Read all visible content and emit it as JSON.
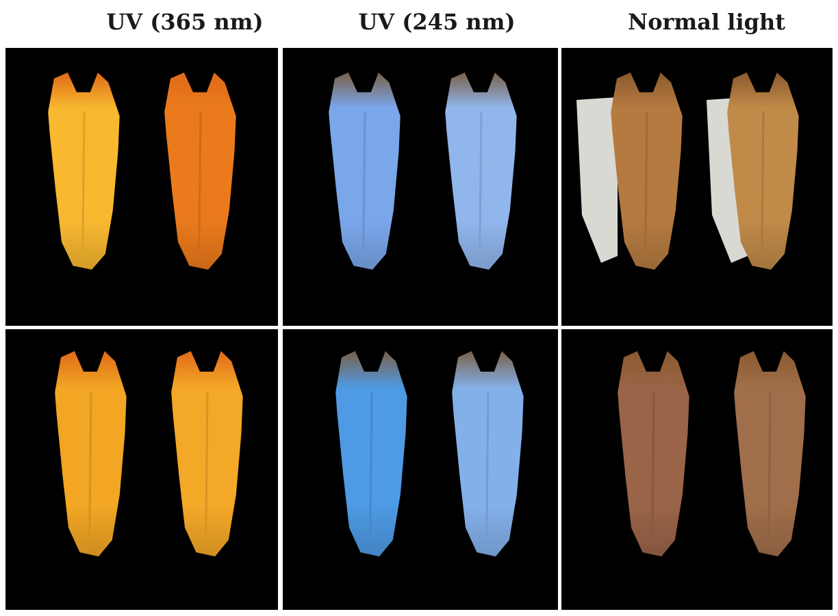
{
  "columns": [
    {
      "title": "UV (365 nm)"
    },
    {
      "title": "UV (245 nm)"
    },
    {
      "title": "Normal light"
    }
  ],
  "palette": {
    "background": "#000000",
    "uv365_body": "#f0a020",
    "uv365_body_dark": "#e8701a",
    "uv365_crown": "#e06a18",
    "uv245_body": "#6f9ee8",
    "uv245_body_light": "#8fb8ee",
    "uv245_crown": "#7a6048",
    "normal_body": "#b0743c",
    "normal_crown": "#8a5a2e",
    "normal_root_bottom": "#8a5a42",
    "mount_grey": "#d9d9d4"
  },
  "rows": [
    {
      "panels": [
        {
          "column": 0,
          "teeth": [
            {
              "body": "uv365_body",
              "crown": "uv365_crown",
              "tint": "#f8b830"
            },
            {
              "body": "uv365_body_dark",
              "crown": "uv365_crown",
              "tint": "#ea7a1c"
            }
          ]
        },
        {
          "column": 1,
          "teeth": [
            {
              "body": "uv245_body",
              "crown": "uv245_crown",
              "tint": "#7aa6ea"
            },
            {
              "body": "uv245_body_light",
              "crown": "uv245_crown",
              "tint": "#90b6ec"
            }
          ]
        },
        {
          "column": 2,
          "teeth": [
            {
              "body": "normal_body",
              "crown": "normal_crown",
              "tint": "#b57a40",
              "mount": true
            },
            {
              "body": "normal_body",
              "crown": "normal_crown",
              "tint": "#c08a48",
              "mount": true
            }
          ]
        }
      ]
    },
    {
      "panels": [
        {
          "column": 0,
          "teeth": [
            {
              "body": "uv365_body",
              "crown": "uv365_crown",
              "tint": "#f2a624"
            },
            {
              "body": "uv365_body",
              "crown": "uv365_crown",
              "tint": "#f4a828"
            }
          ]
        },
        {
          "column": 1,
          "teeth": [
            {
              "body": "uv245_body",
              "crown": "uv245_crown",
              "tint": "#4e9ae4"
            },
            {
              "body": "uv245_body_light",
              "crown": "uv245_crown",
              "tint": "#84b0ea"
            }
          ]
        },
        {
          "column": 2,
          "teeth": [
            {
              "body": "normal_root_bottom",
              "crown": "normal_crown",
              "tint": "#9a6448"
            },
            {
              "body": "normal_root_bottom",
              "crown": "normal_crown",
              "tint": "#a06e4a"
            }
          ]
        }
      ]
    }
  ]
}
